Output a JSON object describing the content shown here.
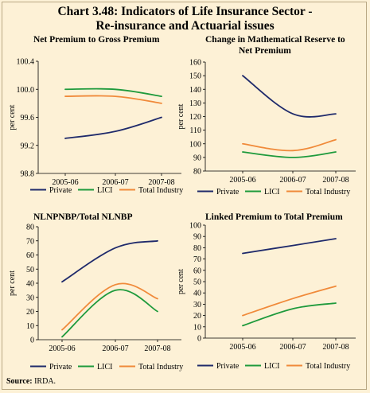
{
  "header": {
    "title_line1": "Chart 3.48: Indicators of Life Insurance Sector -",
    "title_line2": "Re-insurance and Actuarial issues"
  },
  "source": {
    "label": "Source:",
    "value": "IRDA."
  },
  "colors": {
    "Private": "#1f2a6b",
    "LICI": "#1e9a3c",
    "Total Industry": "#f08a3a",
    "background": "#fdf1d6"
  },
  "chart_data": [
    {
      "type": "line",
      "title": "Net Premium to Gross Premium",
      "ylabel": "per cent",
      "categories": [
        "2005-06",
        "2006-07",
        "2007-08"
      ],
      "ylim": [
        98.8,
        100.4
      ],
      "yticks": [
        "98.8",
        "99.2",
        "99.6",
        "100.0",
        "100.4"
      ],
      "series": [
        {
          "name": "Private",
          "values": [
            99.3,
            99.4,
            99.6
          ]
        },
        {
          "name": "LICI",
          "values": [
            100.0,
            100.0,
            99.9
          ]
        },
        {
          "name": "Total Industry",
          "values": [
            99.9,
            99.9,
            99.8
          ]
        }
      ],
      "legend": "bottom"
    },
    {
      "type": "line",
      "title": "Change in Mathematical Reserve to Net Premium",
      "title_lines": [
        "Change in Mathematical Reserve to",
        "Net Premium"
      ],
      "ylabel": "per cent",
      "categories": [
        "2005-06",
        "2006-07",
        "2007-08"
      ],
      "ylim": [
        80,
        160
      ],
      "yticks": [
        "80",
        "90",
        "100",
        "110",
        "120",
        "130",
        "140",
        "150",
        "160"
      ],
      "series": [
        {
          "name": "Private",
          "values": [
            150,
            122,
            122
          ]
        },
        {
          "name": "LICI",
          "values": [
            94,
            90,
            94
          ]
        },
        {
          "name": "Total Industry",
          "values": [
            100,
            95,
            103
          ]
        }
      ],
      "legend": "bottom"
    },
    {
      "type": "line",
      "title": "NLNPNBP/Total NLNBP",
      "ylabel": "per cent",
      "categories": [
        "2005-06",
        "2006-07",
        "2007-08"
      ],
      "ylim": [
        0,
        80
      ],
      "yticks": [
        "0",
        "10",
        "20",
        "30",
        "40",
        "50",
        "60",
        "70",
        "80"
      ],
      "series": [
        {
          "name": "Private",
          "values": [
            41,
            65,
            70
          ]
        },
        {
          "name": "LICI",
          "values": [
            2,
            35,
            20
          ]
        },
        {
          "name": "Total Industry",
          "values": [
            7,
            39,
            29
          ]
        }
      ],
      "legend": "bottom"
    },
    {
      "type": "line",
      "title": "Linked Premium to Total Premium",
      "ylabel": "per cent",
      "categories": [
        "2005-06",
        "2006-07",
        "2007-08"
      ],
      "ylim": [
        0,
        100
      ],
      "yticks": [
        "0",
        "10",
        "20",
        "30",
        "40",
        "50",
        "60",
        "70",
        "80",
        "90",
        "100"
      ],
      "series": [
        {
          "name": "Private",
          "values": [
            75,
            82,
            88
          ]
        },
        {
          "name": "LICI",
          "values": [
            11,
            26,
            31
          ]
        },
        {
          "name": "Total Industry",
          "values": [
            20,
            35,
            46
          ]
        }
      ],
      "legend": "bottom"
    }
  ]
}
